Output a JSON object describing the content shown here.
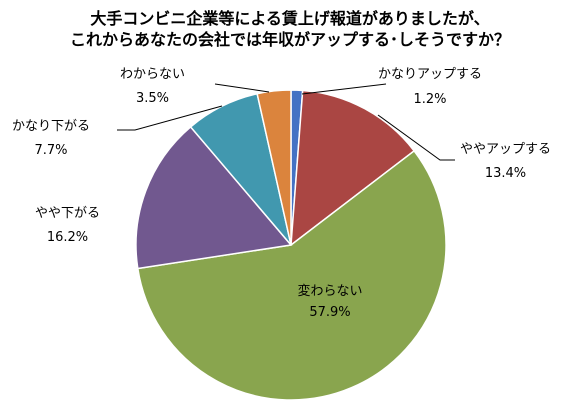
{
  "chart_data": {
    "type": "pie",
    "title_lines": [
      "大手コンビニ企業等による賃上げ報道がありましたが、",
      "これからあなたの会社では年収がアップする･しそうですか？"
    ],
    "unit": "%",
    "slices": [
      {
        "label": "かなりアップする",
        "value": 1.2,
        "value_text": "1.2%",
        "color": "#4472c4"
      },
      {
        "label": "ややアップする",
        "value": 13.4,
        "value_text": "13.4%",
        "color": "#aa4643"
      },
      {
        "label": "変わらない",
        "value": 57.9,
        "value_text": "57.9%",
        "color": "#89a54e"
      },
      {
        "label": "やや下がる",
        "value": 16.2,
        "value_text": "16.2%",
        "color": "#71588f"
      },
      {
        "label": "かなり下がる",
        "value": 7.7,
        "value_text": "7.7%",
        "color": "#4198af"
      },
      {
        "label": "わからない",
        "value": 3.5,
        "value_text": "3.5%",
        "color": "#db843d"
      }
    ]
  }
}
